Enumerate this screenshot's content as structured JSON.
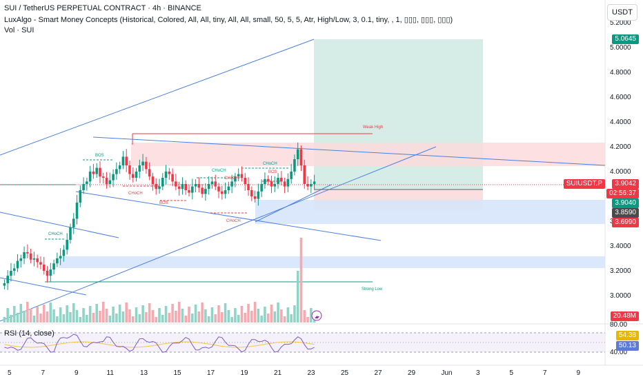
{
  "header": {
    "symbol_line": "SUI / TetherUS PERPETUAL CONTRACT · 4h · BINANCE",
    "indicator_line": "LuxAlgo - Smart Money Concepts (Historical, Colored, All, All, tiny, All, All, small, 50, 5, 5, Atr, High/Low, 3, 0.1, tiny, , 1, ▯▯▯, ▯▯▯, ▯▯▯)",
    "volume_line": "Vol · SUI"
  },
  "currency_button": "USDT",
  "price_axis": {
    "ticks": [
      "5.2000",
      "5.0000",
      "4.8000",
      "4.6000",
      "4.4000",
      "4.2000",
      "4.0000",
      "3.8000",
      "3.6000",
      "3.4000",
      "3.2000",
      "3.0000"
    ],
    "tick_values": [
      5.2,
      5.0,
      4.8,
      4.6,
      4.4,
      4.2,
      4.0,
      3.8,
      3.6,
      3.4,
      3.2,
      3.0
    ]
  },
  "price_tags": {
    "target": {
      "text": "5.0645",
      "color": "#089981"
    },
    "symbol": {
      "text": "SUIUSDT.P",
      "color": "#f23645"
    },
    "last": {
      "text": "3.9042",
      "color": "#f23645"
    },
    "countdown": {
      "text": "02:56:37"
    },
    "entry": {
      "text": "3.9040",
      "color": "#089981"
    },
    "gray": {
      "text": "3.8590",
      "color": "#4a4a4a"
    },
    "stop": {
      "text": "3.6990",
      "color": "#f23645"
    },
    "volume": {
      "text": "20.48M",
      "color": "#f23645"
    }
  },
  "smc_labels": {
    "bos_top": "BOS",
    "choch_a": "CHoCH",
    "choch_b": "CHoCH",
    "choch_c": "CHoCH",
    "choch_low": "CHoCH",
    "choch_mid": "CHoCH",
    "choch_left": "CHoCH",
    "bos_mid": "BOS",
    "bos_small": "BOS",
    "weak_high": "Weak High",
    "strong_low": "Strong Low"
  },
  "rsi": {
    "label": "RSI (14, close)",
    "ticks": [
      "80.00",
      "40.00"
    ],
    "value_tag": {
      "text": "54.38",
      "color": "#e6b800"
    },
    "ma_tag": {
      "text": "50.13",
      "color": "#5b7bd6"
    }
  },
  "time_axis": {
    "labels": [
      "5",
      "7",
      "9",
      "11",
      "13",
      "15",
      "17",
      "19",
      "21",
      "23",
      "25",
      "27",
      "29",
      "Jun",
      "3",
      "5",
      "7",
      "9"
    ]
  },
  "colors": {
    "up": "#089981",
    "down": "#f23645",
    "channel": "#4a7fe0",
    "long_zone": "#d2ebe4",
    "short_zone": "#fbdadd",
    "demand_zone": "#d7e6fb"
  }
}
